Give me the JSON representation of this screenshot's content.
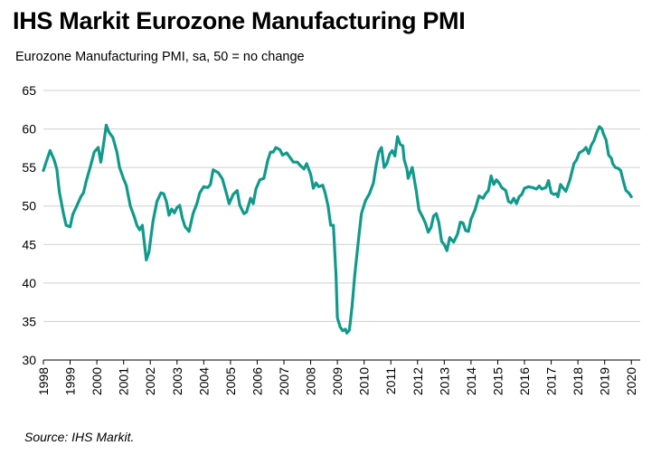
{
  "title": "IHS Markit Eurozone Manufacturing PMI",
  "subtitle": "Eurozone Manufacturing PMI, sa, 50 = no change",
  "source": "Source: IHS Markit.",
  "colors": {
    "line": "#119a8c",
    "grid": "#d0d0d0",
    "axis": "#000000"
  },
  "chart_data": {
    "type": "line",
    "title": "IHS Markit Eurozone Manufacturing PMI",
    "subtitle": "Eurozone Manufacturing PMI, sa, 50 = no change",
    "ylim": [
      30,
      65
    ],
    "xlim": [
      1998,
      2020.33
    ],
    "y_ticks": [
      30,
      35,
      40,
      45,
      50,
      55,
      60,
      65
    ],
    "x_ticks": [
      "1998",
      "1999",
      "2000",
      "2001",
      "2002",
      "2003",
      "2004",
      "2005",
      "2006",
      "2007",
      "2008",
      "2009",
      "2010",
      "2011",
      "2012",
      "2013",
      "2014",
      "2015",
      "2016",
      "2017",
      "2018",
      "2019",
      "2020"
    ],
    "grid": "horizontal",
    "legend": "none",
    "series": [
      {
        "points": [
          [
            1998.0,
            54.6
          ],
          [
            1998.1,
            55.7
          ],
          [
            1998.25,
            57.2
          ],
          [
            1998.4,
            56.0
          ],
          [
            1998.5,
            54.8
          ],
          [
            1998.6,
            51.8
          ],
          [
            1998.75,
            49.0
          ],
          [
            1998.85,
            47.5
          ],
          [
            1999.0,
            47.3
          ],
          [
            1999.1,
            48.9
          ],
          [
            1999.25,
            50.0
          ],
          [
            1999.4,
            51.2
          ],
          [
            1999.5,
            51.7
          ],
          [
            1999.6,
            53.2
          ],
          [
            1999.75,
            55.0
          ],
          [
            1999.9,
            57.0
          ],
          [
            2000.05,
            57.6
          ],
          [
            2000.15,
            55.7
          ],
          [
            2000.25,
            58.0
          ],
          [
            2000.35,
            60.5
          ],
          [
            2000.45,
            59.6
          ],
          [
            2000.6,
            58.9
          ],
          [
            2000.75,
            57.0
          ],
          [
            2000.85,
            55.0
          ],
          [
            2001.0,
            53.5
          ],
          [
            2001.1,
            52.7
          ],
          [
            2001.25,
            50.0
          ],
          [
            2001.4,
            48.6
          ],
          [
            2001.5,
            47.5
          ],
          [
            2001.6,
            46.9
          ],
          [
            2001.7,
            47.5
          ],
          [
            2001.85,
            43.0
          ],
          [
            2001.95,
            44.0
          ],
          [
            2002.1,
            48.0
          ],
          [
            2002.25,
            50.6
          ],
          [
            2002.4,
            51.7
          ],
          [
            2002.5,
            51.6
          ],
          [
            2002.6,
            50.6
          ],
          [
            2002.7,
            48.8
          ],
          [
            2002.8,
            49.6
          ],
          [
            2002.9,
            49.1
          ],
          [
            2003.0,
            49.8
          ],
          [
            2003.1,
            50.1
          ],
          [
            2003.2,
            48.4
          ],
          [
            2003.3,
            47.3
          ],
          [
            2003.45,
            46.7
          ],
          [
            2003.6,
            49.0
          ],
          [
            2003.75,
            50.4
          ],
          [
            2003.85,
            51.7
          ],
          [
            2004.0,
            52.5
          ],
          [
            2004.15,
            52.4
          ],
          [
            2004.25,
            52.8
          ],
          [
            2004.35,
            54.7
          ],
          [
            2004.45,
            54.5
          ],
          [
            2004.55,
            54.3
          ],
          [
            2004.7,
            53.5
          ],
          [
            2004.85,
            51.6
          ],
          [
            2004.95,
            50.3
          ],
          [
            2005.1,
            51.5
          ],
          [
            2005.25,
            52.0
          ],
          [
            2005.35,
            50.1
          ],
          [
            2005.5,
            49.0
          ],
          [
            2005.6,
            49.2
          ],
          [
            2005.75,
            51.0
          ],
          [
            2005.85,
            50.3
          ],
          [
            2005.95,
            52.2
          ],
          [
            2006.1,
            53.4
          ],
          [
            2006.25,
            53.6
          ],
          [
            2006.4,
            56.0
          ],
          [
            2006.5,
            57.0
          ],
          [
            2006.6,
            57.0
          ],
          [
            2006.7,
            57.6
          ],
          [
            2006.85,
            57.3
          ],
          [
            2006.95,
            56.6
          ],
          [
            2007.1,
            56.9
          ],
          [
            2007.25,
            56.2
          ],
          [
            2007.35,
            55.7
          ],
          [
            2007.5,
            55.7
          ],
          [
            2007.6,
            55.3
          ],
          [
            2007.75,
            54.8
          ],
          [
            2007.85,
            55.5
          ],
          [
            2008.0,
            54.1
          ],
          [
            2008.1,
            52.3
          ],
          [
            2008.2,
            53.0
          ],
          [
            2008.3,
            52.5
          ],
          [
            2008.45,
            52.7
          ],
          [
            2008.55,
            51.6
          ],
          [
            2008.65,
            50.0
          ],
          [
            2008.75,
            47.5
          ],
          [
            2008.85,
            47.5
          ],
          [
            2008.95,
            41.0
          ],
          [
            2009.0,
            35.5
          ],
          [
            2009.1,
            34.3
          ],
          [
            2009.2,
            33.8
          ],
          [
            2009.3,
            34.0
          ],
          [
            2009.35,
            33.5
          ],
          [
            2009.45,
            33.9
          ],
          [
            2009.55,
            37.0
          ],
          [
            2009.65,
            41.0
          ],
          [
            2009.8,
            46.0
          ],
          [
            2009.9,
            49.0
          ],
          [
            2010.05,
            50.7
          ],
          [
            2010.2,
            51.6
          ],
          [
            2010.35,
            53.0
          ],
          [
            2010.45,
            55.3
          ],
          [
            2010.55,
            57.0
          ],
          [
            2010.65,
            57.6
          ],
          [
            2010.75,
            55.0
          ],
          [
            2010.85,
            55.5
          ],
          [
            2010.95,
            56.7
          ],
          [
            2011.05,
            57.2
          ],
          [
            2011.15,
            56.5
          ],
          [
            2011.25,
            59.0
          ],
          [
            2011.35,
            58.0
          ],
          [
            2011.45,
            57.8
          ],
          [
            2011.5,
            56.0
          ],
          [
            2011.6,
            54.8
          ],
          [
            2011.65,
            53.6
          ],
          [
            2011.8,
            55.0
          ],
          [
            2011.95,
            52.0
          ],
          [
            2012.05,
            49.5
          ],
          [
            2012.2,
            48.5
          ],
          [
            2012.3,
            47.7
          ],
          [
            2012.4,
            46.6
          ],
          [
            2012.5,
            47.2
          ],
          [
            2012.6,
            48.7
          ],
          [
            2012.7,
            49.0
          ],
          [
            2012.8,
            47.8
          ],
          [
            2012.9,
            45.4
          ],
          [
            2013.0,
            45.0
          ],
          [
            2013.1,
            44.2
          ],
          [
            2013.2,
            45.9
          ],
          [
            2013.35,
            45.3
          ],
          [
            2013.5,
            46.4
          ],
          [
            2013.6,
            47.9
          ],
          [
            2013.7,
            47.8
          ],
          [
            2013.8,
            46.8
          ],
          [
            2013.9,
            46.7
          ],
          [
            2014.0,
            48.3
          ],
          [
            2014.15,
            49.5
          ],
          [
            2014.3,
            51.3
          ],
          [
            2014.45,
            51.0
          ],
          [
            2014.55,
            51.6
          ],
          [
            2014.65,
            52.0
          ],
          [
            2014.75,
            53.9
          ],
          [
            2014.85,
            52.8
          ],
          [
            2014.95,
            53.4
          ],
          [
            2015.05,
            53.0
          ],
          [
            2015.15,
            52.4
          ],
          [
            2015.3,
            52.0
          ],
          [
            2015.4,
            50.6
          ],
          [
            2015.5,
            50.4
          ],
          [
            2015.6,
            51.0
          ],
          [
            2015.7,
            50.3
          ],
          [
            2015.8,
            51.2
          ],
          [
            2015.9,
            51.5
          ],
          [
            2016.0,
            52.3
          ],
          [
            2016.15,
            52.5
          ],
          [
            2016.3,
            52.4
          ],
          [
            2016.45,
            52.2
          ],
          [
            2016.55,
            52.6
          ],
          [
            2016.65,
            52.2
          ],
          [
            2016.8,
            52.4
          ],
          [
            2016.9,
            53.3
          ],
          [
            2017.0,
            51.7
          ],
          [
            2017.1,
            51.5
          ],
          [
            2017.2,
            51.6
          ],
          [
            2017.25,
            51.2
          ],
          [
            2017.35,
            52.8
          ],
          [
            2017.45,
            52.3
          ],
          [
            2017.55,
            51.9
          ],
          [
            2017.7,
            53.4
          ],
          [
            2017.85,
            55.5
          ],
          [
            2017.95,
            56.0
          ],
          [
            2018.05,
            56.9
          ],
          [
            2018.2,
            57.2
          ],
          [
            2018.3,
            57.6
          ],
          [
            2018.4,
            56.8
          ],
          [
            2018.5,
            57.9
          ],
          [
            2018.6,
            58.5
          ],
          [
            2018.7,
            59.5
          ],
          [
            2018.8,
            60.3
          ],
          [
            2018.9,
            60.0
          ],
          [
            2018.95,
            59.4
          ],
          [
            2019.05,
            58.6
          ],
          [
            2019.15,
            56.6
          ],
          [
            2019.25,
            56.2
          ],
          [
            2019.3,
            55.5
          ],
          [
            2019.4,
            55.0
          ],
          [
            2019.5,
            54.9
          ],
          [
            2019.6,
            54.6
          ],
          [
            2019.7,
            53.2
          ],
          [
            2019.8,
            52.0
          ],
          [
            2019.9,
            51.7
          ],
          [
            2020.0,
            51.2
          ]
        ]
      }
    ]
  }
}
